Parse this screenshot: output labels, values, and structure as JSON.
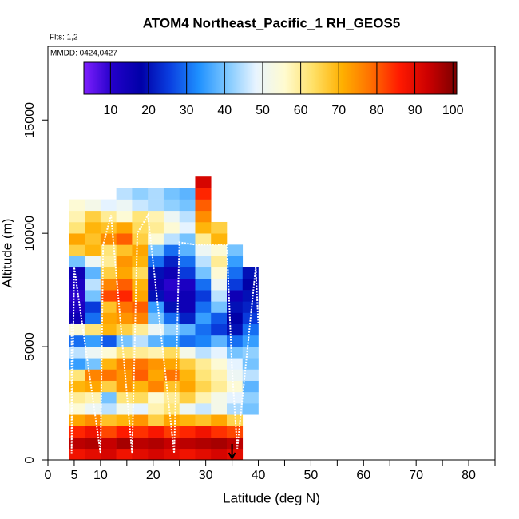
{
  "chart_data": {
    "type": "heatmap",
    "title": "ATOM4 Northeast_Pacific_1 RH_GEOS5",
    "annotations": [
      "Flts: 1,2",
      "MMDD: 0424,0427"
    ],
    "x_label": "Latitude (deg N)",
    "y_label": "Altitude (m)",
    "xlim": [
      0,
      85
    ],
    "ylim": [
      0,
      18250
    ],
    "xticks": [
      0,
      5,
      10,
      20,
      30,
      40,
      50,
      60,
      70,
      80
    ],
    "xminor_ticks": [
      15,
      25,
      35,
      45,
      55,
      65,
      75,
      85
    ],
    "yticks": [
      0,
      5000,
      10000,
      15000
    ],
    "x_edges": [
      4,
      7,
      10,
      13,
      16,
      19,
      22,
      25,
      28,
      31,
      34,
      37,
      40
    ],
    "y_edges": [
      0,
      500,
      1000,
      1500,
      2000,
      2500,
      3000,
      3500,
      4000,
      4500,
      5000,
      5500,
      6000,
      6500,
      7000,
      7500,
      8000,
      8500,
      9000,
      9500,
      10000,
      10500,
      11000,
      11500,
      12000,
      12500
    ],
    "values": [
      [
        88,
        90,
        92,
        88,
        90,
        92,
        90,
        88,
        90,
        92,
        90,
        null
      ],
      [
        95,
        96,
        94,
        97,
        95,
        96,
        94,
        95,
        96,
        97,
        95,
        null
      ],
      [
        85,
        88,
        82,
        86,
        84,
        87,
        83,
        85,
        88,
        84,
        82,
        null
      ],
      [
        72,
        75,
        68,
        70,
        74,
        66,
        72,
        70,
        68,
        72,
        65,
        null
      ],
      [
        55,
        50,
        45,
        52,
        48,
        58,
        62,
        50,
        46,
        52,
        44,
        40
      ],
      [
        60,
        58,
        40,
        62,
        64,
        55,
        60,
        66,
        58,
        52,
        48,
        42
      ],
      [
        70,
        72,
        66,
        74,
        70,
        76,
        68,
        72,
        65,
        60,
        55,
        38
      ],
      [
        62,
        76,
        78,
        74,
        80,
        72,
        78,
        70,
        62,
        58,
        50,
        45
      ],
      [
        35,
        40,
        70,
        76,
        78,
        74,
        72,
        66,
        60,
        55,
        48,
        40
      ],
      [
        45,
        50,
        55,
        62,
        60,
        58,
        64,
        52,
        45,
        48,
        40,
        42
      ],
      [
        30,
        35,
        28,
        40,
        45,
        38,
        35,
        30,
        32,
        38,
        30,
        35
      ],
      [
        55,
        62,
        70,
        66,
        60,
        50,
        42,
        38,
        30,
        25,
        20,
        30
      ],
      [
        15,
        30,
        72,
        74,
        76,
        40,
        30,
        22,
        35,
        28,
        18,
        25
      ],
      [
        12,
        25,
        68,
        78,
        80,
        35,
        20,
        15,
        30,
        40,
        20,
        22
      ],
      [
        10,
        40,
        82,
        85,
        72,
        20,
        12,
        15,
        25,
        45,
        15,
        20
      ],
      [
        12,
        45,
        76,
        80,
        70,
        15,
        10,
        12,
        30,
        50,
        25,
        18
      ],
      [
        15,
        38,
        66,
        72,
        64,
        20,
        15,
        25,
        40,
        55,
        30,
        20
      ],
      [
        40,
        50,
        60,
        74,
        70,
        30,
        22,
        30,
        45,
        60,
        35,
        null
      ],
      [
        66,
        70,
        62,
        68,
        72,
        40,
        30,
        38,
        50,
        55,
        40,
        null
      ],
      [
        72,
        68,
        75,
        80,
        66,
        55,
        45,
        40,
        60,
        70,
        null,
        null
      ],
      [
        62,
        70,
        68,
        72,
        64,
        60,
        55,
        48,
        70,
        66,
        null,
        null
      ],
      [
        58,
        66,
        60,
        55,
        62,
        58,
        50,
        45,
        75,
        null,
        null,
        null
      ],
      [
        55,
        52,
        48,
        50,
        46,
        44,
        42,
        40,
        80,
        null,
        null,
        null
      ],
      [
        null,
        null,
        null,
        45,
        42,
        44,
        40,
        38,
        85,
        null,
        null,
        null
      ],
      [
        null,
        null,
        null,
        null,
        null,
        null,
        null,
        null,
        92,
        null,
        null,
        null
      ]
    ],
    "clim": [
      3,
      101
    ],
    "colorbar_ticks": [
      10,
      20,
      30,
      40,
      50,
      60,
      70,
      80,
      90,
      100
    ],
    "colors": [
      "#7f1fff",
      "#2200c8",
      "#0000a8",
      "#0a3fe0",
      "#1e90ff",
      "#7ec8ff",
      "#e8f4ff",
      "#fffbd0",
      "#ffe066",
      "#ffb000",
      "#ff7000",
      "#ff1a00",
      "#cc0000",
      "#7a0000"
    ],
    "track": {
      "color": "#ffffff",
      "x": [
        4.5,
        4.5,
        5,
        10,
        10.5,
        12,
        16,
        17,
        19,
        24,
        25,
        28,
        34,
        35,
        36,
        39.5,
        40
      ],
      "y": [
        6000,
        300,
        8500,
        300,
        9500,
        10800,
        300,
        10000,
        10800,
        300,
        9600,
        9500,
        9500,
        4000,
        500,
        8500,
        6000
      ]
    },
    "arrow_x": 35
  }
}
